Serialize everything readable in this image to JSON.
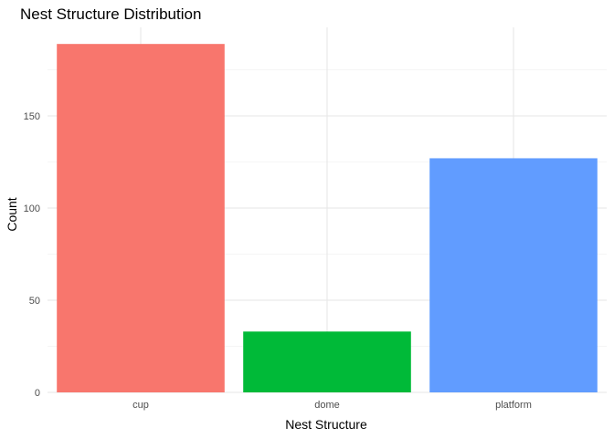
{
  "chart_data": {
    "type": "bar",
    "title": "Nest Structure Distribution",
    "xlabel": "Nest Structure",
    "ylabel": "Count",
    "categories": [
      "cup",
      "dome",
      "platform"
    ],
    "values": [
      189,
      33,
      127
    ],
    "colors": [
      "#F8766D",
      "#00BA38",
      "#619CFF"
    ],
    "ylim": [
      0,
      198
    ],
    "yticks": [
      0,
      50,
      100,
      150
    ],
    "grid": true,
    "legend": "none"
  }
}
